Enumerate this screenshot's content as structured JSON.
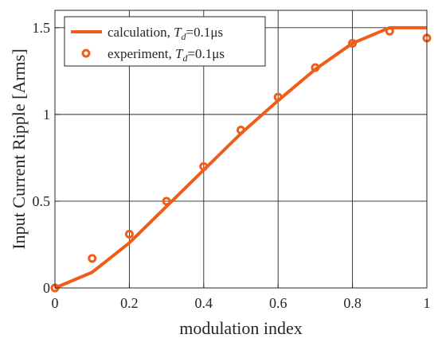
{
  "chart_data": {
    "type": "line",
    "xlabel": "modulation index",
    "ylabel": "Input Current Ripple [Arms]",
    "xlim": [
      0,
      1
    ],
    "ylim": [
      0,
      1.6
    ],
    "xticks": [
      0,
      0.2,
      0.4,
      0.6,
      0.8,
      1
    ],
    "xtick_labels": [
      "0",
      "0.2",
      "0.4",
      "0.6",
      "0.8",
      "1"
    ],
    "yticks": [
      0,
      0.5,
      1,
      1.5
    ],
    "ytick_labels": [
      "0",
      "0.5",
      "1",
      "1.5"
    ],
    "grid": true,
    "legend_position": "top-left",
    "color": "#f25c19",
    "series": [
      {
        "name_prefix": "calculation, ",
        "name_symbol": "T",
        "name_subscript": "d",
        "name_suffix": "=0.1μs",
        "style": "line",
        "x": [
          0,
          0.1,
          0.2,
          0.3,
          0.4,
          0.5,
          0.6,
          0.7,
          0.8,
          0.9,
          1.0
        ],
        "values": [
          0,
          0.09,
          0.26,
          0.47,
          0.68,
          0.89,
          1.08,
          1.26,
          1.41,
          1.5,
          1.5
        ]
      },
      {
        "name_prefix": "experiment, ",
        "name_symbol": "T",
        "name_subscript": "d",
        "name_suffix": "=0.1μs",
        "style": "marker",
        "x": [
          0,
          0.1,
          0.2,
          0.3,
          0.4,
          0.5,
          0.6,
          0.7,
          0.8,
          0.9,
          1.0
        ],
        "values": [
          0,
          0.17,
          0.31,
          0.5,
          0.7,
          0.91,
          1.1,
          1.27,
          1.41,
          1.48,
          1.44
        ]
      }
    ]
  }
}
